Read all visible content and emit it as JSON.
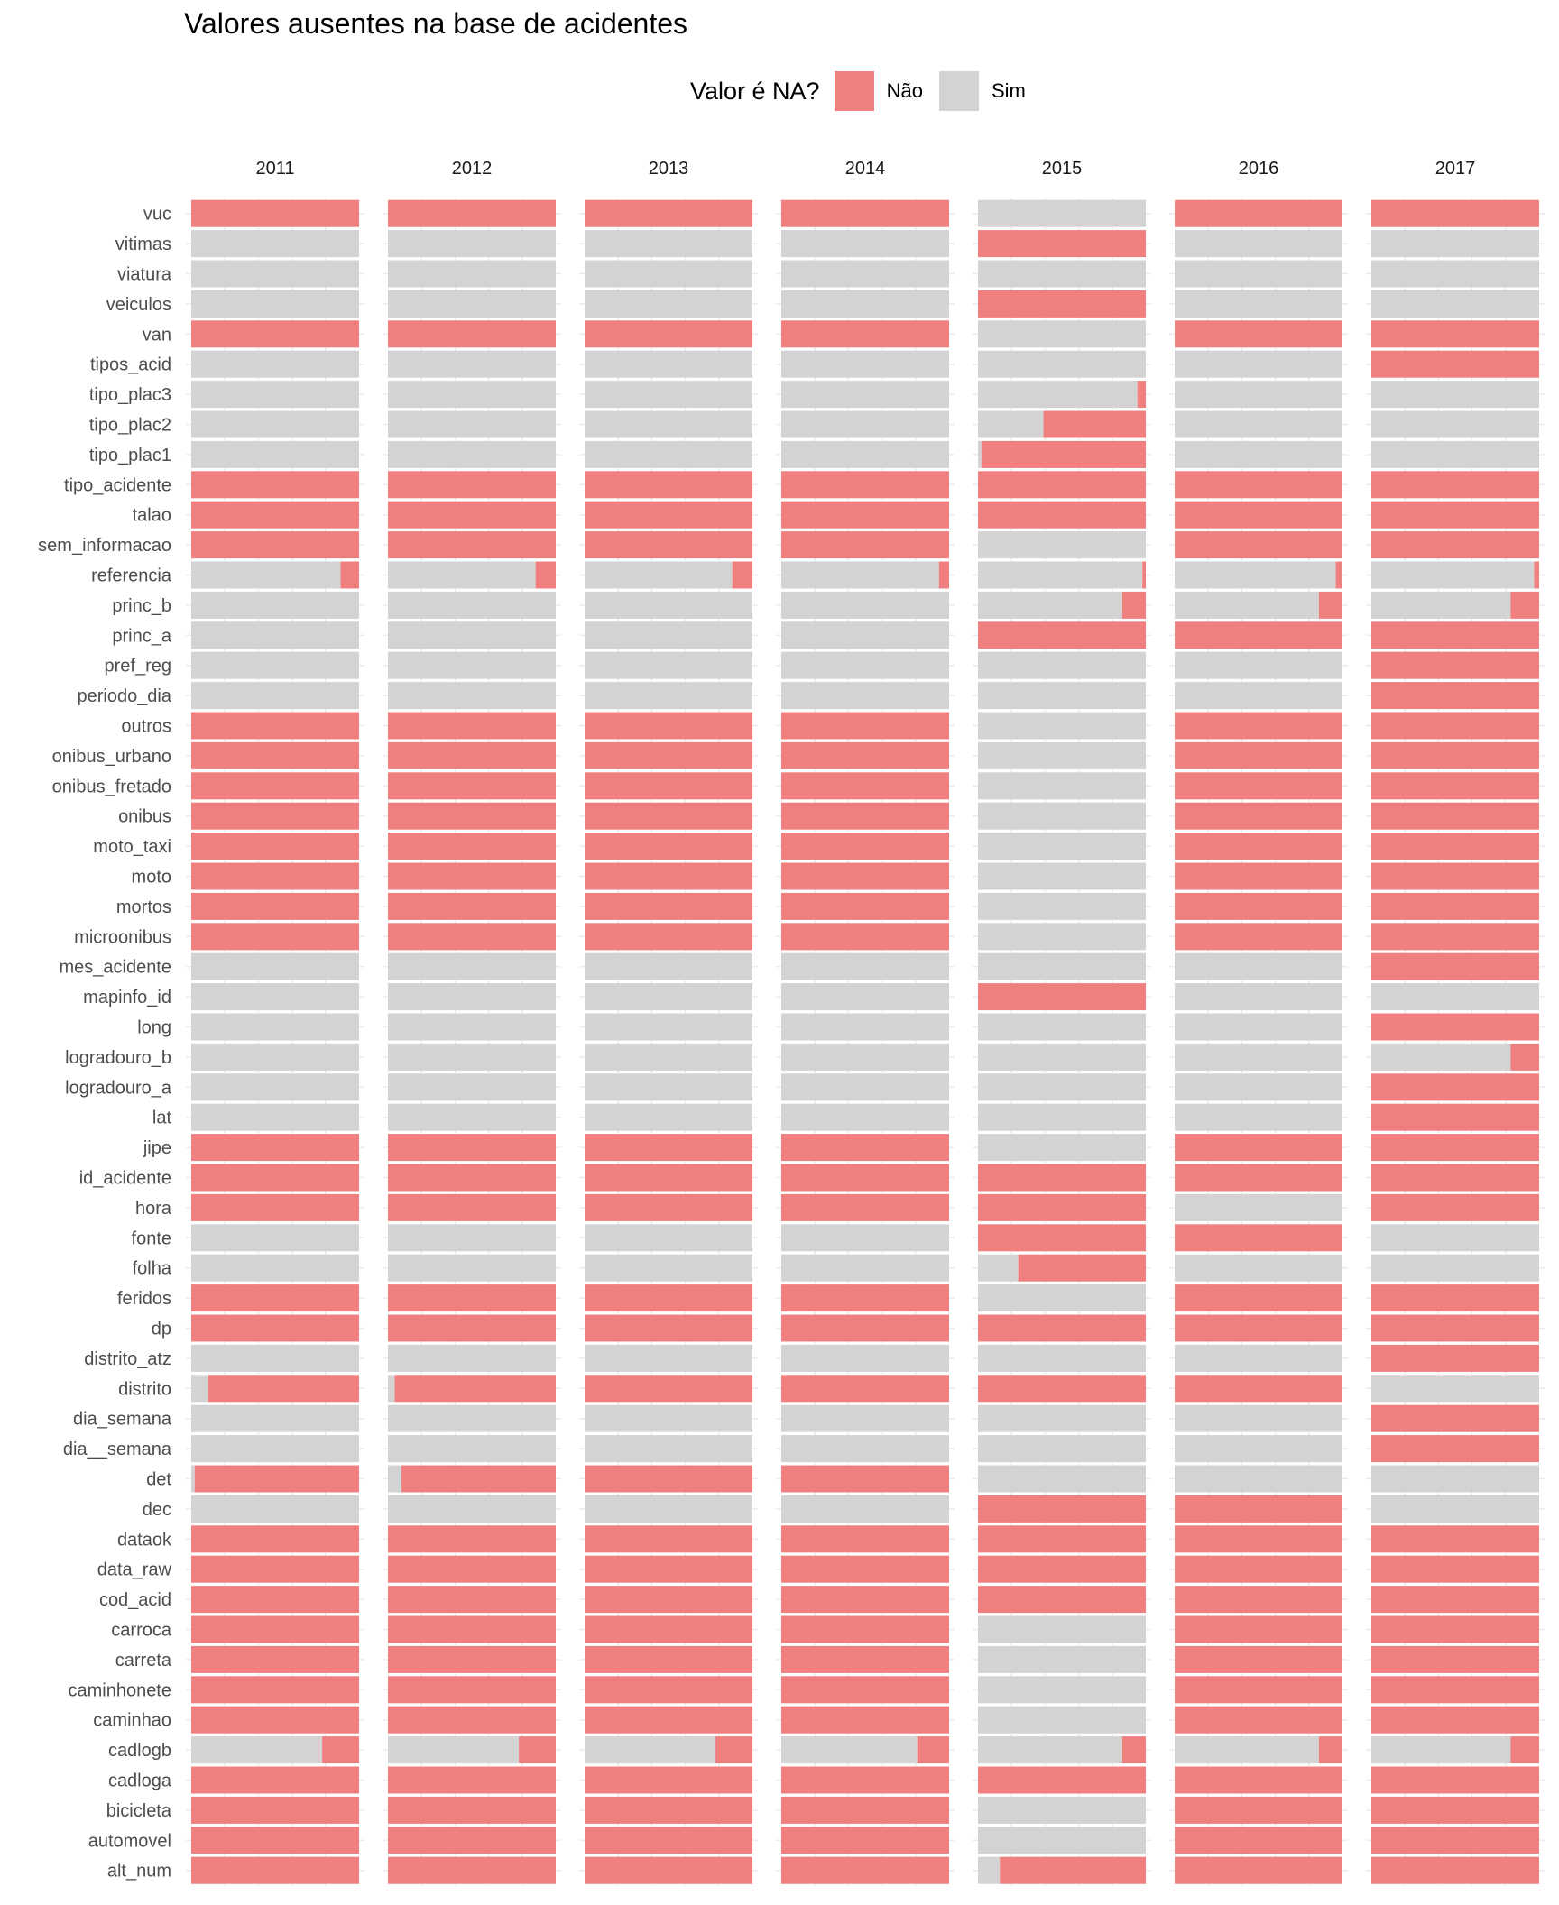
{
  "chart_data": {
    "type": "bar",
    "orientation": "horizontal-stacked-100",
    "title": "Valores ausentes na base de acidentes",
    "legend": {
      "title": "Valor é NA?",
      "position": "top",
      "entries": [
        {
          "name": "Não",
          "color": "#F08080"
        },
        {
          "name": "Sim",
          "color": "#D3D3D3"
        }
      ]
    },
    "facets": [
      "2011",
      "2012",
      "2013",
      "2014",
      "2015",
      "2016",
      "2017"
    ],
    "variables": [
      "vuc",
      "vitimas",
      "viatura",
      "veiculos",
      "van",
      "tipos_acid",
      "tipo_plac3",
      "tipo_plac2",
      "tipo_plac1",
      "tipo_acidente",
      "talao",
      "sem_informacao",
      "referencia",
      "princ_b",
      "princ_a",
      "pref_reg",
      "periodo_dia",
      "outros",
      "onibus_urbano",
      "onibus_fretado",
      "onibus",
      "moto_taxi",
      "moto",
      "mortos",
      "microonibus",
      "mes_acidente",
      "mapinfo_id",
      "long",
      "logradouro_b",
      "logradouro_a",
      "lat",
      "jipe",
      "id_acidente",
      "hora",
      "fonte",
      "folha",
      "feridos",
      "dp",
      "distrito_atz",
      "distrito",
      "dia_semana",
      "dia__semana",
      "det",
      "dec",
      "dataok",
      "data_raw",
      "cod_acid",
      "carroca",
      "carreta",
      "caminhonete",
      "caminhao",
      "cadlogb",
      "cadloga",
      "bicicleta",
      "automovel",
      "alt_num"
    ],
    "value_description": "proportion of rows that are NA (Sim)",
    "xlim": [
      0,
      1
    ],
    "grid": true,
    "na_proportion": {
      "2011": [
        0,
        1,
        1,
        1,
        0,
        1,
        1,
        1,
        1,
        0,
        0,
        0,
        0.89,
        1,
        1,
        1,
        1,
        0,
        0,
        0,
        0,
        0,
        0,
        0,
        0,
        1,
        1,
        1,
        1,
        1,
        1,
        0,
        0,
        0,
        1,
        1,
        0,
        0,
        1,
        0.1,
        1,
        1,
        0.02,
        1,
        0,
        0,
        0,
        0,
        0,
        0,
        0,
        0.78,
        0,
        0,
        0,
        0
      ],
      "2012": [
        0,
        1,
        1,
        1,
        0,
        1,
        1,
        1,
        1,
        0,
        0,
        0,
        0.88,
        1,
        1,
        1,
        1,
        0,
        0,
        0,
        0,
        0,
        0,
        0,
        0,
        1,
        1,
        1,
        1,
        1,
        1,
        0,
        0,
        0,
        1,
        1,
        0,
        0,
        1,
        0.04,
        1,
        1,
        0.08,
        1,
        0,
        0,
        0,
        0,
        0,
        0,
        0,
        0.78,
        0,
        0,
        0,
        0
      ],
      "2013": [
        0,
        1,
        1,
        1,
        0,
        1,
        1,
        1,
        1,
        0,
        0,
        0,
        0.88,
        1,
        1,
        1,
        1,
        0,
        0,
        0,
        0,
        0,
        0,
        0,
        0,
        1,
        1,
        1,
        1,
        1,
        1,
        0,
        0,
        0,
        1,
        1,
        0,
        0,
        1,
        0,
        1,
        1,
        0,
        1,
        0,
        0,
        0,
        0,
        0,
        0,
        0,
        0.78,
        0,
        0,
        0,
        0
      ],
      "2014": [
        0,
        1,
        1,
        1,
        0,
        1,
        1,
        1,
        1,
        0,
        0,
        0,
        0.94,
        1,
        1,
        1,
        1,
        0,
        0,
        0,
        0,
        0,
        0,
        0,
        0,
        1,
        1,
        1,
        1,
        1,
        1,
        0,
        0,
        0,
        1,
        1,
        0,
        0,
        1,
        0,
        1,
        1,
        0,
        1,
        0,
        0,
        0,
        0,
        0,
        0,
        0,
        0.81,
        0,
        0,
        0,
        0
      ],
      "2015": [
        1,
        0,
        1,
        0,
        1,
        1,
        0.95,
        0.39,
        0.02,
        0,
        0,
        1,
        0.98,
        0.86,
        0,
        1,
        1,
        1,
        1,
        1,
        1,
        1,
        1,
        1,
        1,
        1,
        0,
        1,
        1,
        1,
        1,
        1,
        0,
        0,
        0,
        0.24,
        1,
        0,
        1,
        0,
        1,
        1,
        1,
        0,
        0,
        0,
        0,
        1,
        1,
        1,
        1,
        0.86,
        0,
        1,
        1,
        0.13
      ],
      "2016": [
        0,
        1,
        1,
        1,
        0,
        1,
        1,
        1,
        1,
        0,
        0,
        0,
        0.96,
        0.86,
        0,
        1,
        1,
        0,
        0,
        0,
        0,
        0,
        0,
        0,
        0,
        1,
        1,
        1,
        1,
        1,
        1,
        0,
        0,
        1,
        0,
        1,
        0,
        0,
        1,
        0,
        1,
        1,
        1,
        0,
        0,
        0,
        0,
        0,
        0,
        0,
        0,
        0.86,
        0,
        0,
        0,
        0
      ],
      "2017": [
        0,
        1,
        1,
        1,
        0,
        0,
        1,
        1,
        1,
        0,
        0,
        0,
        0.97,
        0.83,
        0,
        0,
        0,
        0,
        0,
        0,
        0,
        0,
        0,
        0,
        0,
        0,
        1,
        0,
        0.83,
        0,
        0,
        0,
        0,
        0,
        1,
        1,
        0,
        0,
        0,
        1,
        0,
        0,
        1,
        1,
        0,
        0,
        0,
        0,
        0,
        0,
        0,
        0.83,
        0,
        0,
        0,
        0
      ]
    }
  }
}
